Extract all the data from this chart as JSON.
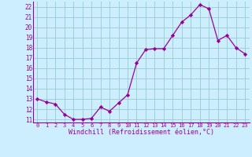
{
  "hours": [
    0,
    1,
    2,
    3,
    4,
    5,
    6,
    7,
    8,
    9,
    10,
    11,
    12,
    13,
    14,
    15,
    16,
    17,
    18,
    19,
    20,
    21,
    22,
    23
  ],
  "values": [
    13.0,
    12.7,
    12.5,
    11.5,
    11.0,
    11.0,
    11.1,
    12.2,
    11.8,
    12.6,
    13.4,
    16.5,
    17.8,
    17.9,
    17.9,
    19.2,
    20.5,
    21.2,
    22.2,
    21.8,
    18.7,
    19.2,
    18.0,
    17.4
  ],
  "line_color": "#990099",
  "marker": "D",
  "marker_size": 2.2,
  "bg_color": "#cceeff",
  "grid_color": "#99cccc",
  "xlabel": "Windchill (Refroidissement éolien,°C)",
  "xlabel_color": "#990099",
  "tick_color": "#990099",
  "ylim_min": 10.7,
  "ylim_max": 22.5,
  "yticks": [
    11,
    12,
    13,
    14,
    15,
    16,
    17,
    18,
    19,
    20,
    21,
    22
  ],
  "xlim_min": -0.5,
  "xlim_max": 23.5
}
